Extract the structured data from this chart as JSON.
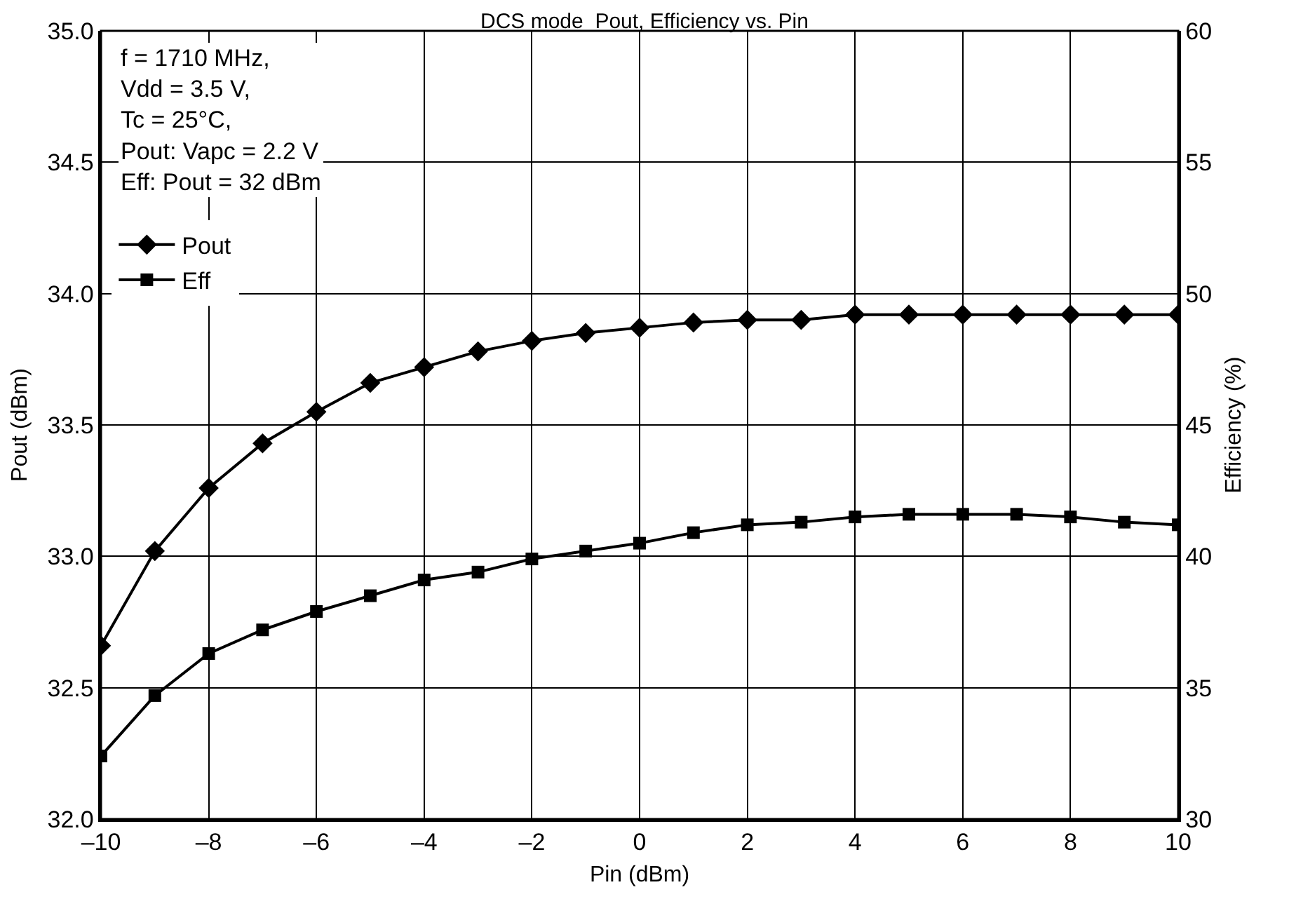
{
  "chart_data": {
    "type": "line",
    "title": "DCS mode  Pout, Efficiency vs. Pin",
    "xlabel": "Pin (dBm)",
    "ylabel": "Pout (dBm)",
    "y2label": "Efficiency (%)",
    "x": [
      -10,
      -9,
      -8,
      -7,
      -6,
      -5,
      -4,
      -3,
      -2,
      -1,
      0,
      1,
      2,
      3,
      4,
      5,
      6,
      7,
      8,
      9,
      10
    ],
    "series": [
      {
        "name": "Pout",
        "color": "#000000",
        "marker": "diamond",
        "values": [
          32.66,
          33.02,
          33.26,
          33.43,
          33.55,
          33.66,
          33.72,
          33.78,
          33.82,
          33.85,
          33.87,
          33.89,
          33.9,
          33.9,
          33.92,
          33.92,
          33.92,
          33.92,
          33.92,
          33.92,
          33.92
        ]
      },
      {
        "name": "Eff",
        "color": "#000000",
        "marker": "square",
        "axis": "y2",
        "values": [
          32.4,
          34.7,
          36.3,
          37.2,
          37.9,
          38.5,
          39.1,
          39.4,
          39.9,
          40.2,
          40.5,
          40.9,
          41.2,
          41.3,
          41.5,
          41.6,
          41.6,
          41.6,
          41.5,
          41.3,
          41.2
        ]
      }
    ],
    "annotations": [
      "f = 1710 MHz,\nVdd = 3.5 V,\nTc = 25°C,\nPout: Vapc = 2.2 V\nEff: Pout = 32 dBm"
    ],
    "xlim": [
      -10,
      10
    ],
    "xticks": [
      {
        "value": -10,
        "label": "–10"
      },
      {
        "value": -8,
        "label": "–8"
      },
      {
        "value": -6,
        "label": "–6"
      },
      {
        "value": -4,
        "label": "–4"
      },
      {
        "value": -2,
        "label": "–2"
      },
      0,
      2,
      4,
      6,
      8,
      10
    ],
    "ylim": [
      32,
      35
    ],
    "yticks": [
      {
        "value": 32,
        "label": "32.0"
      },
      32.5,
      {
        "value": 33,
        "label": "33.0"
      },
      33.5,
      {
        "value": 34,
        "label": "34.0"
      },
      34.5,
      {
        "value": 35,
        "label": "35.0"
      }
    ],
    "y2lim": [
      30,
      60
    ],
    "y2ticks": [
      30,
      35,
      40,
      45,
      50,
      55,
      60
    ],
    "grid": true,
    "legend": "top left",
    "line_style": "solid"
  }
}
